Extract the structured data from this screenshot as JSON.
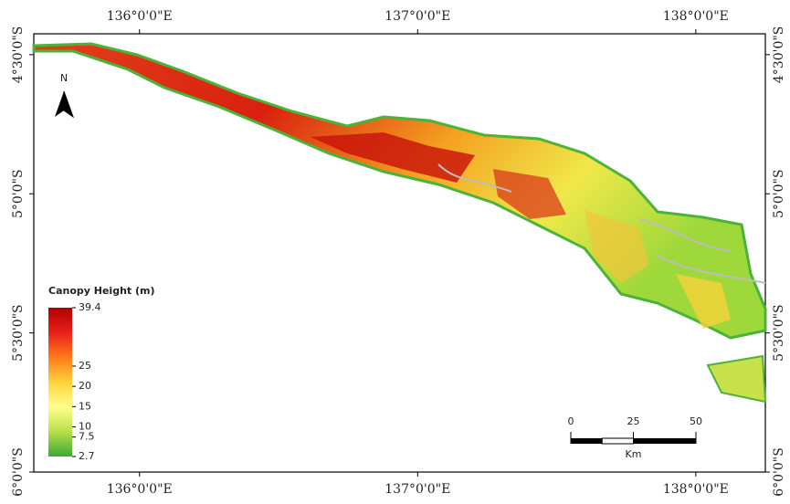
{
  "map": {
    "xlim": [
      135.62,
      138.25
    ],
    "ylim": [
      -6.0,
      -4.425
    ],
    "lon_ticks": [
      {
        "value": 136,
        "label": "136°0'0\"E"
      },
      {
        "value": 137,
        "label": "137°0'0\"E"
      },
      {
        "value": 138,
        "label": "138°0'0\"E"
      }
    ],
    "lat_ticks": [
      {
        "value": -4.5,
        "label": "4°30'0\"S"
      },
      {
        "value": -5.0,
        "label": "5°0'0\"S"
      },
      {
        "value": -5.5,
        "label": "5°30'0\"S"
      },
      {
        "value": -6.0,
        "label": "6°0'0\"S"
      }
    ],
    "north": "N",
    "legend": {
      "title": "Canopy Height (m)",
      "ticks": [
        39.4,
        25,
        20,
        15,
        10,
        7.5,
        2.7
      ],
      "colors": [
        "#3aa935",
        "#b8e04a",
        "#ffff8c",
        "#ffd23c",
        "#ff7a1a",
        "#e8201a",
        "#b00000"
      ]
    },
    "scale": {
      "ticks": [
        0,
        25,
        50
      ],
      "unit": "Km"
    }
  }
}
